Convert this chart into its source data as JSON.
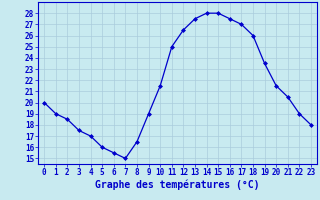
{
  "hours": [
    0,
    1,
    2,
    3,
    4,
    5,
    6,
    7,
    8,
    9,
    10,
    11,
    12,
    13,
    14,
    15,
    16,
    17,
    18,
    19,
    20,
    21,
    22,
    23
  ],
  "temps": [
    20,
    19,
    18.5,
    17.5,
    17,
    16,
    15.5,
    15,
    16.5,
    19,
    21.5,
    25,
    26.5,
    27.5,
    28,
    28,
    27.5,
    27,
    26,
    23.5,
    21.5,
    20.5,
    19,
    18
  ],
  "line_color": "#0000cc",
  "marker": "D",
  "marker_size": 2.0,
  "bg_color": "#c8eaf0",
  "grid_color": "#aaccdd",
  "xlabel": "Graphe des températures (°C)",
  "ylabel_ticks": [
    15,
    16,
    17,
    18,
    19,
    20,
    21,
    22,
    23,
    24,
    25,
    26,
    27,
    28
  ],
  "xlim": [
    -0.5,
    23.5
  ],
  "ylim": [
    14.5,
    29.0
  ],
  "tick_label_color": "#0000cc",
  "tick_fontsize": 5.5,
  "xlabel_fontsize": 7.0,
  "xlabel_color": "#0000cc"
}
